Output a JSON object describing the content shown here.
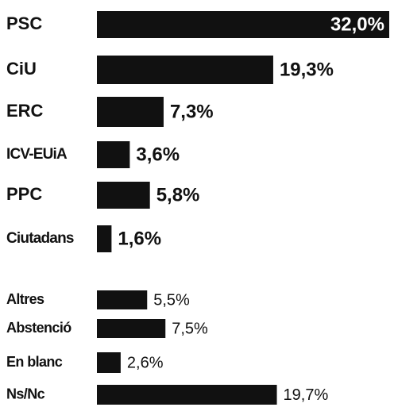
{
  "chart_data": {
    "type": "barh",
    "categories": [
      "PSC",
      "CiU",
      "ERC",
      "ICV-EUiA",
      "PPC",
      "Ciutadans",
      "Altres",
      "Abstenció",
      "En blanc",
      "Ns/Nc"
    ],
    "values": [
      32.0,
      19.3,
      7.3,
      3.6,
      5.8,
      1.6,
      5.5,
      7.5,
      2.6,
      19.7
    ],
    "value_labels": [
      "32,0%",
      "19,3%",
      "7,3%",
      "3,6%",
      "5,8%",
      "1,6%",
      "5,5%",
      "7,5%",
      "2,6%",
      "19,7%"
    ],
    "color": "#111111"
  }
}
